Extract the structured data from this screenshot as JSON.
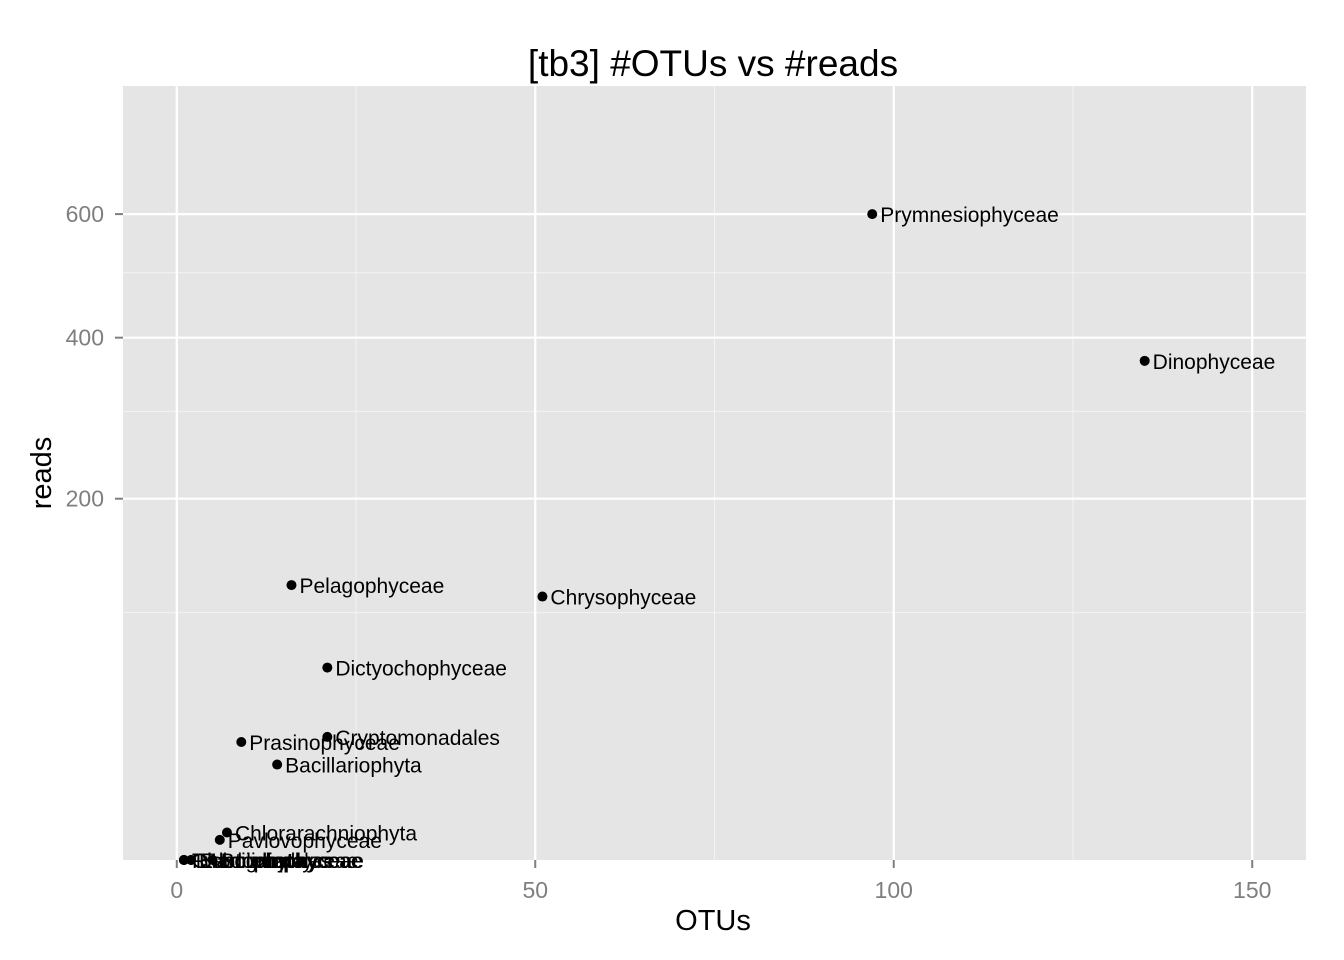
{
  "chart_data": {
    "type": "scatter",
    "title": "[tb3] #OTUs vs #reads",
    "xlabel": "OTUs",
    "ylabel": "reads",
    "xlim": [
      -7.5,
      157.5
    ],
    "ylim": [
      1,
      850
    ],
    "y_scale": "sqrt",
    "x_ticks": [
      0,
      50,
      100,
      150
    ],
    "x_tick_labels": [
      "0",
      "50",
      "100",
      "150"
    ],
    "x_minor_ticks": [
      25,
      75,
      125
    ],
    "y_ticks": [
      200,
      400,
      600
    ],
    "y_tick_labels": [
      "200",
      "400",
      "600"
    ],
    "y_minor_ticks": [
      100,
      300,
      500
    ],
    "grid": true,
    "background": "#e5e5e5",
    "grid_color": "#ffffff",
    "point_color": "#000000",
    "points": [
      {
        "label": "Prymnesiophyceae",
        "x": 97,
        "y": 600
      },
      {
        "label": "Dinophyceae",
        "x": 135,
        "y": 367
      },
      {
        "label": "Pelagophyceae",
        "x": 16,
        "y": 121
      },
      {
        "label": "Chrysophyceae",
        "x": 51,
        "y": 112
      },
      {
        "label": "Dictyochophyceae",
        "x": 21,
        "y": 64
      },
      {
        "label": "Cryptomonadales",
        "x": 21,
        "y": 30
      },
      {
        "label": "Prasinophyceae",
        "x": 9,
        "y": 28
      },
      {
        "label": "Bacillariophyta",
        "x": 14,
        "y": 20
      },
      {
        "label": "Chlorarachniophyta",
        "x": 7,
        "y": 4
      },
      {
        "label": "Pavlovophyceae",
        "x": 6,
        "y": 3
      },
      {
        "label": "Bolidophyceae",
        "x": 5,
        "y": 1
      },
      {
        "label": "Eustigmatales",
        "x": 2,
        "y": 1
      },
      {
        "label": "Mamiellophyceae",
        "x": 2,
        "y": 1
      },
      {
        "label": "Chlorophyta",
        "x": 1,
        "y": 1
      },
      {
        "label": "Rhodophyta",
        "x": 1,
        "y": 1
      },
      {
        "label": "Trebouxiophyceae",
        "x": 1,
        "y": 1
      }
    ]
  }
}
